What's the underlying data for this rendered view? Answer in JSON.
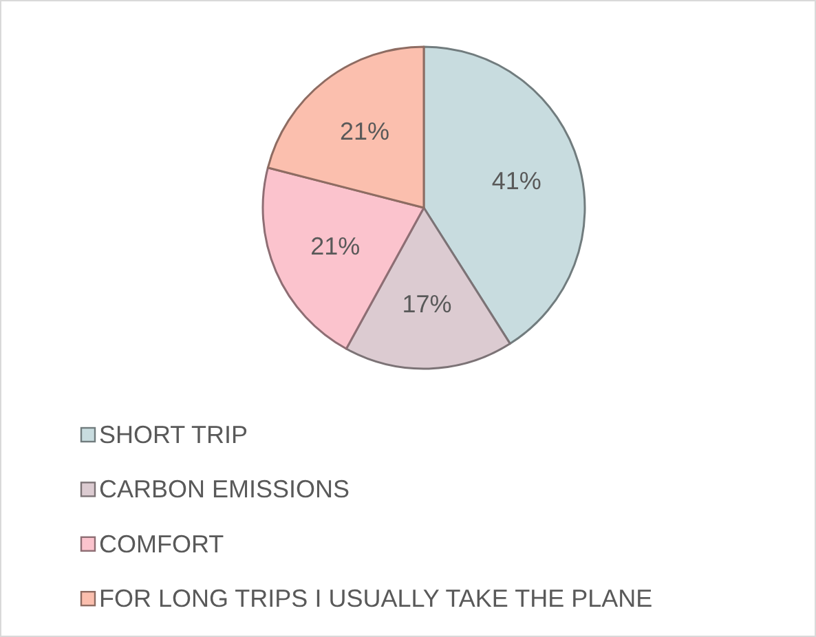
{
  "chart_data": {
    "type": "pie",
    "categories": [
      "SHORT TRIP",
      "CARBON EMISSIONS",
      "COMFORT",
      "FOR LONG TRIPS I USUALLY TAKE THE PLANE"
    ],
    "values": [
      41,
      17,
      21,
      21
    ],
    "colors": [
      "#c8dcdf",
      "#dccbd1",
      "#fbc3cd",
      "#fbbfae"
    ],
    "value_labels": [
      "41%",
      "17%",
      "21%",
      "21%"
    ],
    "legend": "bottom"
  }
}
